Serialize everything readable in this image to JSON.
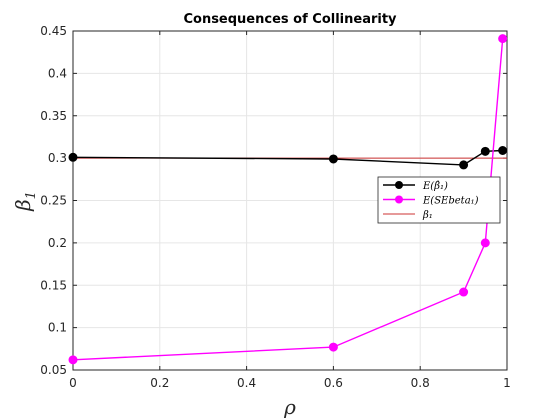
{
  "chart_data": {
    "type": "line",
    "title": "Consequences of Collinearity",
    "xlabel": "ρ",
    "ylabel": "β",
    "ylabel_sub": "1",
    "xlim": [
      0,
      1
    ],
    "ylim": [
      0.05,
      0.45
    ],
    "xticks": [
      0,
      0.2,
      0.4,
      0.6,
      0.8,
      1
    ],
    "xtick_labels": [
      "0",
      "0.2",
      "0.4",
      "0.6",
      "0.8",
      "1"
    ],
    "yticks": [
      0.05,
      0.1,
      0.15,
      0.2,
      0.25,
      0.3,
      0.35,
      0.4,
      0.45
    ],
    "ytick_labels": [
      "0.05",
      "0.1",
      "0.15",
      "0.2",
      "0.25",
      "0.3",
      "0.35",
      "0.4",
      "0.45"
    ],
    "grid": true,
    "legend_position": "right",
    "series": [
      {
        "name": "E(β̂₁)",
        "color": "#000000",
        "marker": "circle",
        "x": [
          0,
          0.6,
          0.9,
          0.95,
          0.99
        ],
        "y": [
          0.301,
          0.299,
          0.292,
          0.308,
          0.309
        ]
      },
      {
        "name": "E(SEbeta₁)",
        "color": "#ff00ff",
        "marker": "circle",
        "x": [
          0,
          0.6,
          0.9,
          0.95,
          0.99
        ],
        "y": [
          0.062,
          0.077,
          0.142,
          0.2,
          0.441
        ]
      },
      {
        "name": "β₁",
        "color": "#cc3333",
        "marker": "none",
        "x": [
          0,
          1
        ],
        "y": [
          0.3,
          0.3
        ]
      }
    ]
  }
}
